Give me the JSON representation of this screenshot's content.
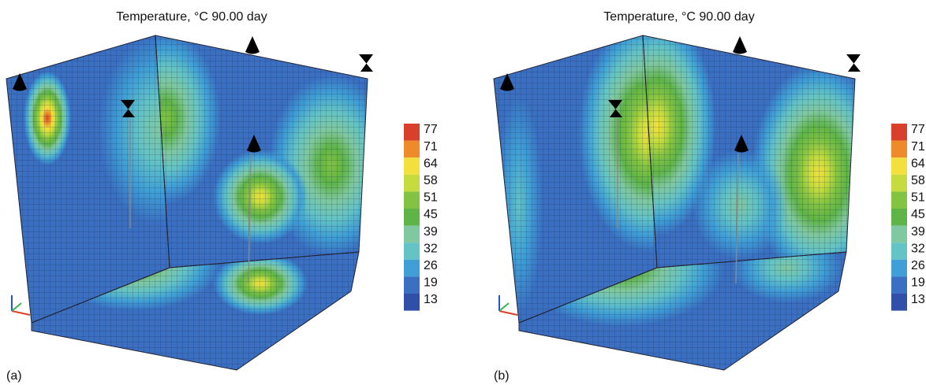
{
  "panels": [
    {
      "title": "Temperature, °C   90.00 day",
      "label": "(a)",
      "colorbar": {
        "labels": [
          "77",
          "71",
          "64",
          "58",
          "51",
          "45",
          "39",
          "32",
          "26",
          "19",
          "13"
        ],
        "colors": [
          "#d9402b",
          "#ef8a2a",
          "#f3e03c",
          "#c6dc3e",
          "#82c341",
          "#5fb447",
          "#7fc8a0",
          "#63c3c5",
          "#3f9fd6",
          "#3a6fc2",
          "#2f4fa8"
        ]
      }
    },
    {
      "title": "Temperature, °C   90.00 day",
      "label": "(b)",
      "colorbar": {
        "labels": [
          "77",
          "71",
          "64",
          "58",
          "51",
          "45",
          "39",
          "32",
          "26",
          "19",
          "13"
        ],
        "colors": [
          "#d9402b",
          "#ef8a2a",
          "#f3e03c",
          "#c6dc3e",
          "#82c341",
          "#5fb447",
          "#7fc8a0",
          "#63c3c5",
          "#3f9fd6",
          "#3a6fc2",
          "#2f4fa8"
        ]
      }
    }
  ]
}
